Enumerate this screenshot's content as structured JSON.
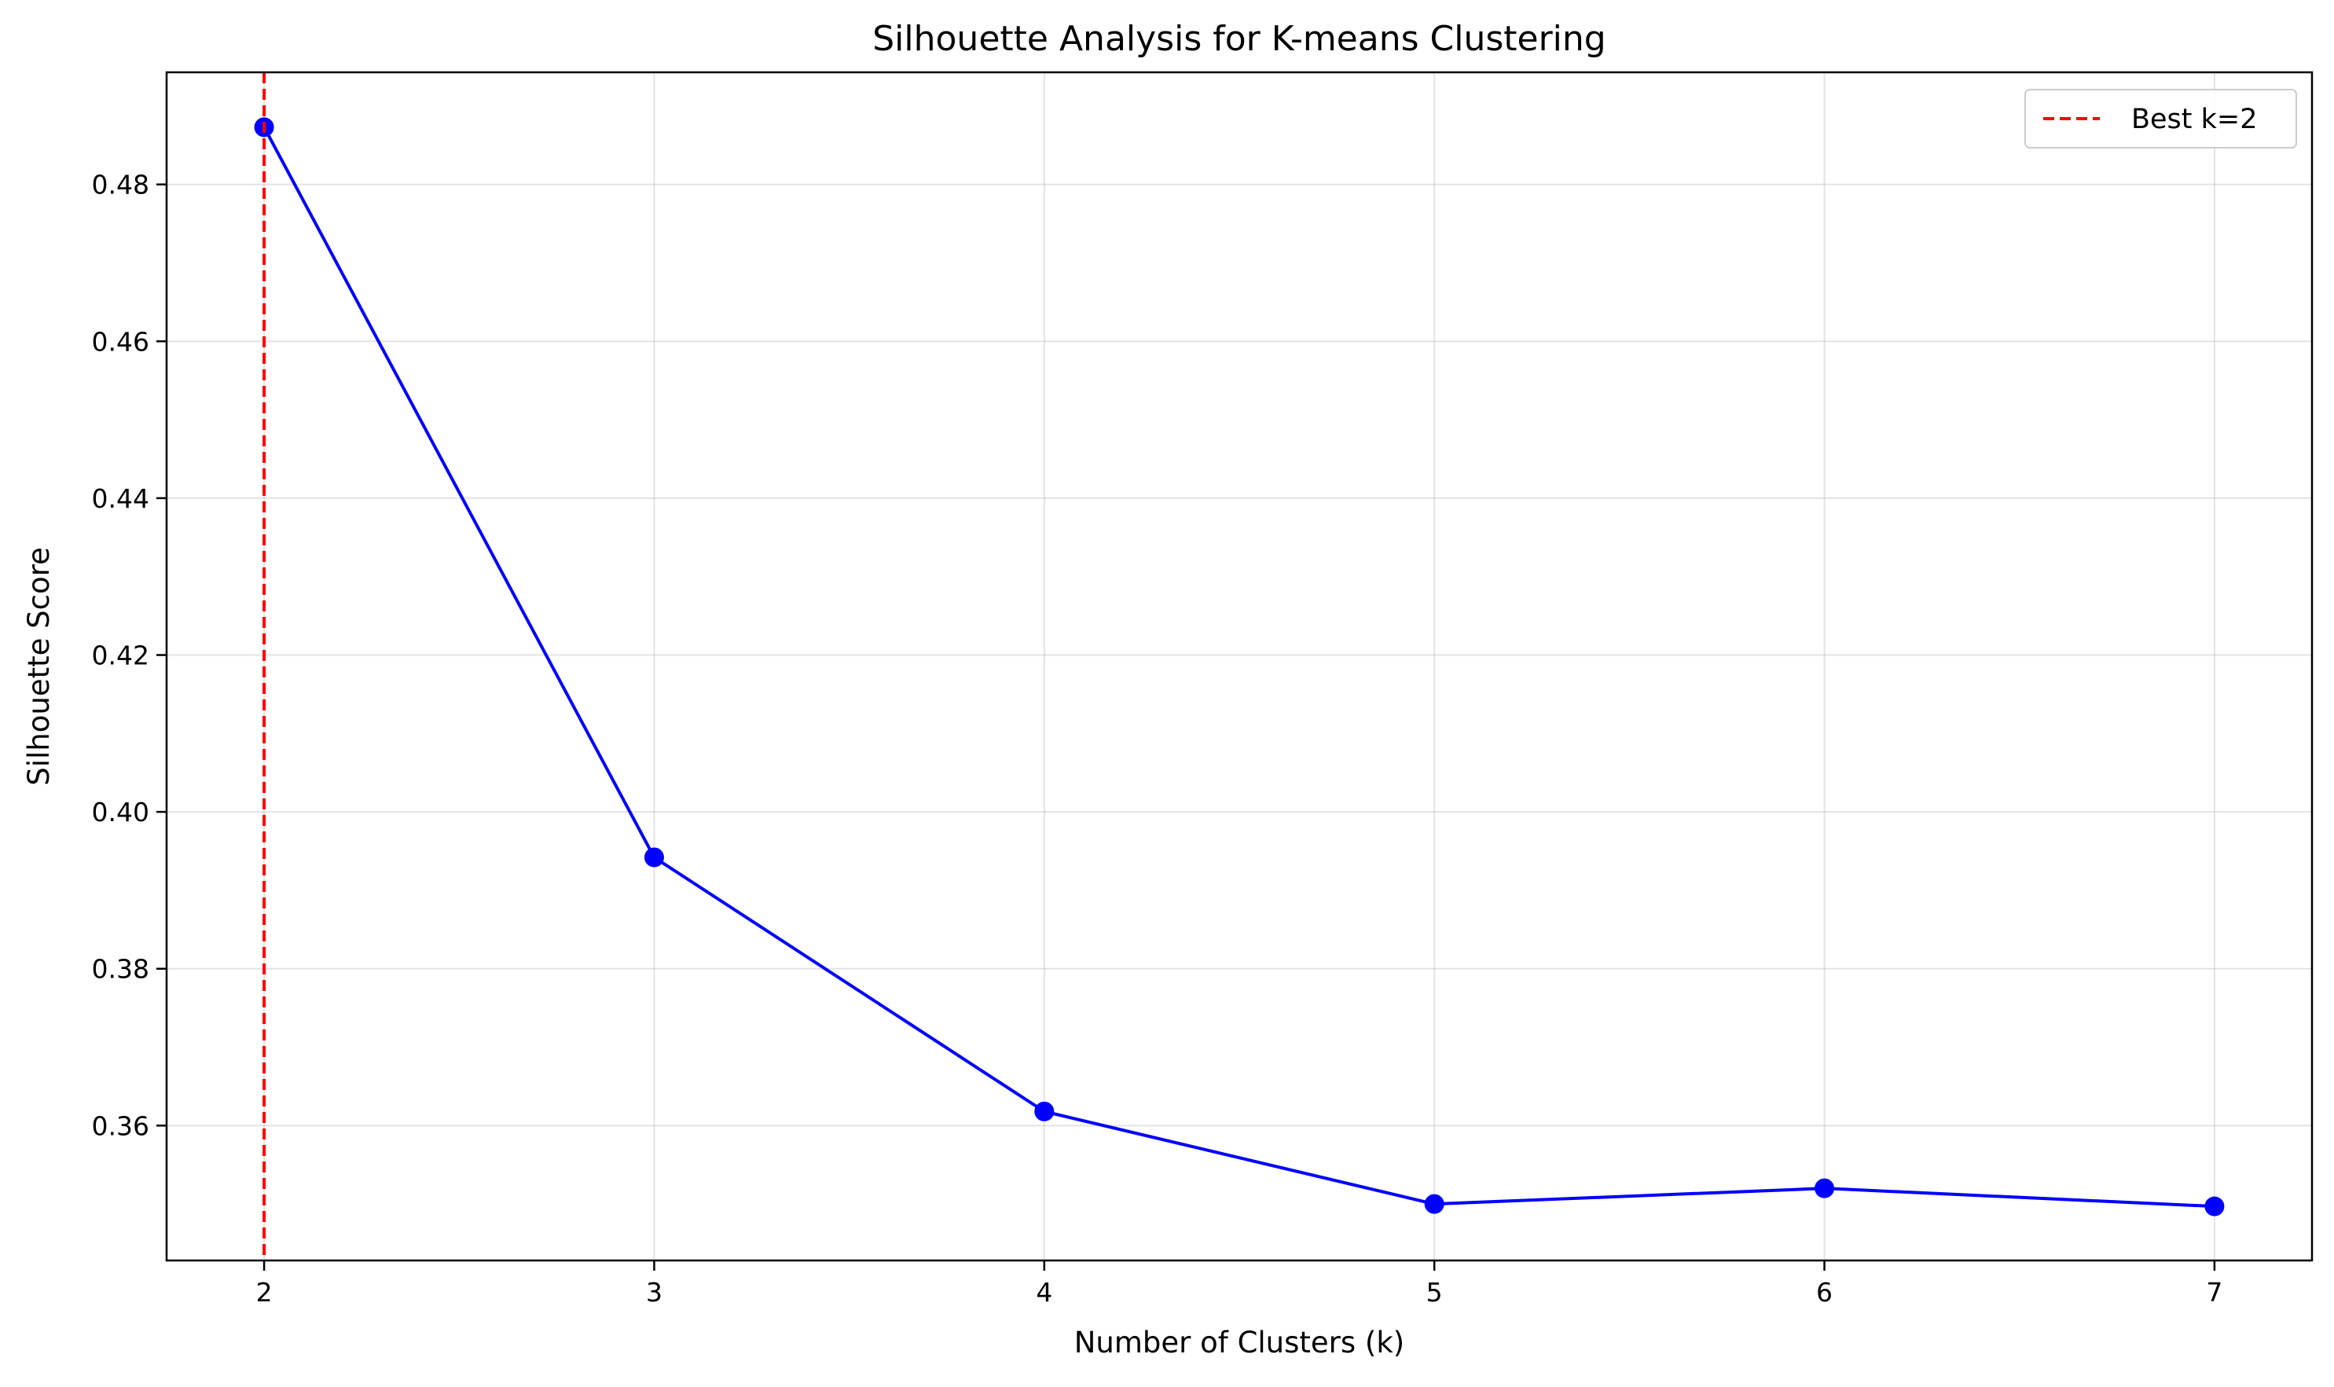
{
  "chart_data": {
    "type": "line",
    "title": "Silhouette Analysis for K-means Clustering",
    "xlabel": "Number of Clusters (k)",
    "ylabel": "Silhouette Score",
    "x": [
      2,
      3,
      4,
      5,
      6,
      7
    ],
    "series": [
      {
        "values": [
          0.4873,
          0.3942,
          0.3618,
          0.35,
          0.352,
          0.3497
        ],
        "color": "#0000ff",
        "marker": "circle"
      }
    ],
    "xticks": [
      2,
      3,
      4,
      5,
      6,
      7
    ],
    "xtick_labels": [
      "2",
      "3",
      "4",
      "5",
      "6",
      "7"
    ],
    "yticks": [
      0.36,
      0.38,
      0.4,
      0.42,
      0.44,
      0.46,
      0.48
    ],
    "ytick_labels": [
      "0.36",
      "0.38",
      "0.40",
      "0.42",
      "0.44",
      "0.46",
      "0.48"
    ],
    "xlim": [
      1.75,
      7.25
    ],
    "ylim": [
      0.3428,
      0.4943
    ],
    "grid": true,
    "reference_line": {
      "orientation": "vertical",
      "x": 2,
      "color": "#ff0000",
      "style": "dashed",
      "label": "Best k=2"
    },
    "legend": {
      "position": "top-right"
    }
  }
}
